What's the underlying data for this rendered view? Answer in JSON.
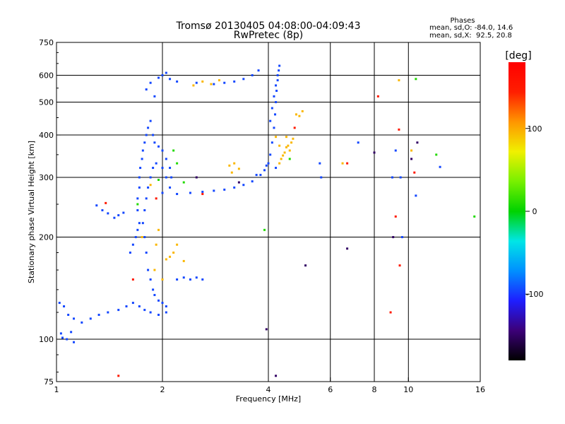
{
  "chart_data": {
    "type": "scatter",
    "title": "Tromsø 20130405 04:08:00-04:09:43",
    "subtitle": "RwPretec (8p)",
    "xlabel": "Frequency [MHz]",
    "ylabel": "Stationary phase Virtual Height [km]",
    "x_scale": "log",
    "y_scale": "log",
    "xlim": [
      1,
      16
    ],
    "ylim": [
      75,
      750
    ],
    "x_ticks": [
      1,
      2,
      4,
      6,
      8,
      10,
      16
    ],
    "y_ticks": [
      75,
      100,
      200,
      300,
      400,
      500,
      600,
      750
    ],
    "grid_x": [
      2,
      4,
      6,
      8,
      10
    ],
    "grid_y": [
      100,
      200,
      300,
      400,
      500,
      600
    ],
    "grid": true,
    "info": {
      "heading": "Phases",
      "line1": "mean, sd,O: -84.0, 14.6",
      "line2": "mean, sd,X:  92.5, 20.8"
    },
    "colorbar": {
      "label": "[deg]",
      "ticks": [
        100,
        0,
        -100
      ],
      "range": [
        -180,
        180
      ],
      "colors": [
        "#000000",
        "#3c0078",
        "#1e1eff",
        "#0090ff",
        "#00e6e6",
        "#00d200",
        "#78f000",
        "#f0f000",
        "#ff9600",
        "#ff1e00",
        "#ff0000"
      ]
    },
    "series": [
      {
        "phase_deg": -95,
        "points": [
          [
            1.02,
            128
          ],
          [
            1.05,
            125
          ],
          [
            1.08,
            118
          ],
          [
            1.12,
            115
          ],
          [
            1.18,
            112
          ],
          [
            1.25,
            115
          ],
          [
            1.32,
            118
          ],
          [
            1.4,
            120
          ],
          [
            1.5,
            122
          ],
          [
            1.58,
            125
          ],
          [
            1.65,
            128
          ],
          [
            1.72,
            125
          ],
          [
            1.78,
            122
          ],
          [
            1.85,
            120
          ],
          [
            1.95,
            118
          ],
          [
            2.05,
            120
          ],
          [
            1.03,
            104
          ],
          [
            1.07,
            100
          ],
          [
            1.12,
            98
          ],
          [
            1.1,
            105
          ],
          [
            1.04,
            101
          ],
          [
            1.3,
            248
          ],
          [
            1.35,
            240
          ],
          [
            1.4,
            235
          ],
          [
            1.46,
            228
          ],
          [
            1.5,
            232
          ],
          [
            1.55,
            236
          ],
          [
            1.62,
            180
          ],
          [
            1.65,
            190
          ],
          [
            1.68,
            200
          ],
          [
            1.7,
            210
          ],
          [
            1.72,
            220
          ],
          [
            1.7,
            240
          ],
          [
            1.7,
            260
          ],
          [
            1.72,
            280
          ],
          [
            1.72,
            300
          ],
          [
            1.73,
            320
          ],
          [
            1.75,
            340
          ],
          [
            1.76,
            360
          ],
          [
            1.78,
            380
          ],
          [
            1.8,
            400
          ],
          [
            1.82,
            420
          ],
          [
            1.85,
            440
          ],
          [
            1.88,
            400
          ],
          [
            1.9,
            380
          ],
          [
            1.95,
            370
          ],
          [
            2.0,
            360
          ],
          [
            2.05,
            340
          ],
          [
            2.1,
            320
          ],
          [
            2.12,
            300
          ],
          [
            2.1,
            280
          ],
          [
            2.05,
            300
          ],
          [
            2.0,
            320
          ],
          [
            1.92,
            330
          ],
          [
            1.88,
            320
          ],
          [
            1.85,
            300
          ],
          [
            1.82,
            280
          ],
          [
            1.8,
            260
          ],
          [
            1.78,
            240
          ],
          [
            1.76,
            220
          ],
          [
            1.78,
            200
          ],
          [
            1.8,
            180
          ],
          [
            1.82,
            160
          ],
          [
            1.85,
            150
          ],
          [
            1.88,
            140
          ],
          [
            1.9,
            135
          ],
          [
            1.95,
            130
          ],
          [
            2.0,
            128
          ],
          [
            2.05,
            125
          ],
          [
            2.0,
            270
          ],
          [
            2.2,
            268
          ],
          [
            2.4,
            270
          ],
          [
            2.6,
            272
          ],
          [
            2.8,
            274
          ],
          [
            3.0,
            276
          ],
          [
            3.2,
            280
          ],
          [
            3.4,
            285
          ],
          [
            3.6,
            292
          ],
          [
            3.8,
            305
          ],
          [
            3.95,
            325
          ],
          [
            4.05,
            350
          ],
          [
            4.1,
            380
          ],
          [
            4.15,
            420
          ],
          [
            4.18,
            460
          ],
          [
            4.2,
            500
          ],
          [
            4.22,
            540
          ],
          [
            4.25,
            580
          ],
          [
            4.28,
            620
          ],
          [
            4.3,
            640
          ],
          [
            4.25,
            600
          ],
          [
            4.2,
            560
          ],
          [
            4.15,
            520
          ],
          [
            4.1,
            480
          ],
          [
            4.05,
            440
          ],
          [
            2.0,
            600
          ],
          [
            2.1,
            585
          ],
          [
            2.2,
            575
          ],
          [
            2.5,
            570
          ],
          [
            2.8,
            565
          ],
          [
            3.0,
            570
          ],
          [
            3.2,
            575
          ],
          [
            3.4,
            585
          ],
          [
            3.6,
            600
          ],
          [
            3.75,
            620
          ],
          [
            1.8,
            545
          ],
          [
            1.85,
            570
          ],
          [
            1.9,
            520
          ],
          [
            1.95,
            590
          ],
          [
            2.05,
            610
          ],
          [
            2.2,
            150
          ],
          [
            2.3,
            152
          ],
          [
            2.4,
            150
          ],
          [
            2.5,
            152
          ],
          [
            2.6,
            150
          ],
          [
            4.2,
            320
          ],
          [
            4.0,
            330
          ],
          [
            3.9,
            315
          ],
          [
            3.7,
            305
          ],
          [
            5.6,
            330
          ],
          [
            5.65,
            300
          ],
          [
            9.0,
            300
          ],
          [
            9.2,
            360
          ],
          [
            9.5,
            300
          ],
          [
            9.6,
            200
          ],
          [
            10.5,
            265
          ],
          [
            12.3,
            322
          ],
          [
            7.2,
            380
          ]
        ]
      },
      {
        "phase_deg": 95,
        "points": [
          [
            3.1,
            325
          ],
          [
            3.2,
            330
          ],
          [
            3.3,
            318
          ],
          [
            3.15,
            310
          ],
          [
            4.35,
            340
          ],
          [
            4.45,
            355
          ],
          [
            4.5,
            368
          ],
          [
            4.55,
            372
          ],
          [
            4.6,
            360
          ],
          [
            4.4,
            348
          ],
          [
            4.65,
            380
          ],
          [
            4.7,
            390
          ],
          [
            4.5,
            395
          ],
          [
            4.3,
            372
          ],
          [
            2.1,
            175
          ],
          [
            2.15,
            180
          ],
          [
            2.2,
            190
          ],
          [
            2.05,
            172
          ],
          [
            2.45,
            560
          ],
          [
            2.6,
            575
          ],
          [
            2.75,
            565
          ],
          [
            2.9,
            580
          ],
          [
            1.9,
            160
          ],
          [
            1.92,
            190
          ],
          [
            1.95,
            210
          ],
          [
            2.0,
            150
          ],
          [
            4.8,
            460
          ],
          [
            4.9,
            455
          ],
          [
            5.0,
            470
          ],
          [
            4.3,
            330
          ],
          [
            1.85,
            285
          ],
          [
            9.4,
            580
          ],
          [
            10.2,
            360
          ],
          [
            6.5,
            330
          ],
          [
            4.2,
            395
          ],
          [
            2.3,
            170
          ],
          [
            1.75,
            200
          ]
        ]
      },
      {
        "phase_deg": 10,
        "points": [
          [
            1.7,
            250
          ],
          [
            1.95,
            295
          ],
          [
            2.2,
            330
          ],
          [
            2.3,
            290
          ],
          [
            3.9,
            210
          ],
          [
            10.5,
            585
          ],
          [
            12.0,
            350
          ],
          [
            15.4,
            230
          ],
          [
            2.15,
            360
          ],
          [
            4.6,
            340
          ]
        ]
      },
      {
        "phase_deg": 150,
        "points": [
          [
            1.38,
            252
          ],
          [
            1.92,
            260
          ],
          [
            2.6,
            268
          ],
          [
            6.7,
            330
          ],
          [
            8.2,
            520
          ],
          [
            9.4,
            415
          ],
          [
            9.2,
            230
          ],
          [
            10.4,
            310
          ],
          [
            9.45,
            165
          ],
          [
            8.9,
            120
          ],
          [
            1.5,
            78
          ],
          [
            4.75,
            420
          ],
          [
            1.65,
            150
          ]
        ]
      },
      {
        "phase_deg": -150,
        "points": [
          [
            3.95,
            107
          ],
          [
            4.2,
            78
          ],
          [
            8.0,
            355
          ],
          [
            9.05,
            200
          ],
          [
            10.2,
            340
          ],
          [
            10.6,
            380
          ],
          [
            6.7,
            185
          ],
          [
            5.1,
            165
          ],
          [
            2.5,
            300
          ],
          [
            3.3,
            290
          ]
        ]
      }
    ]
  }
}
